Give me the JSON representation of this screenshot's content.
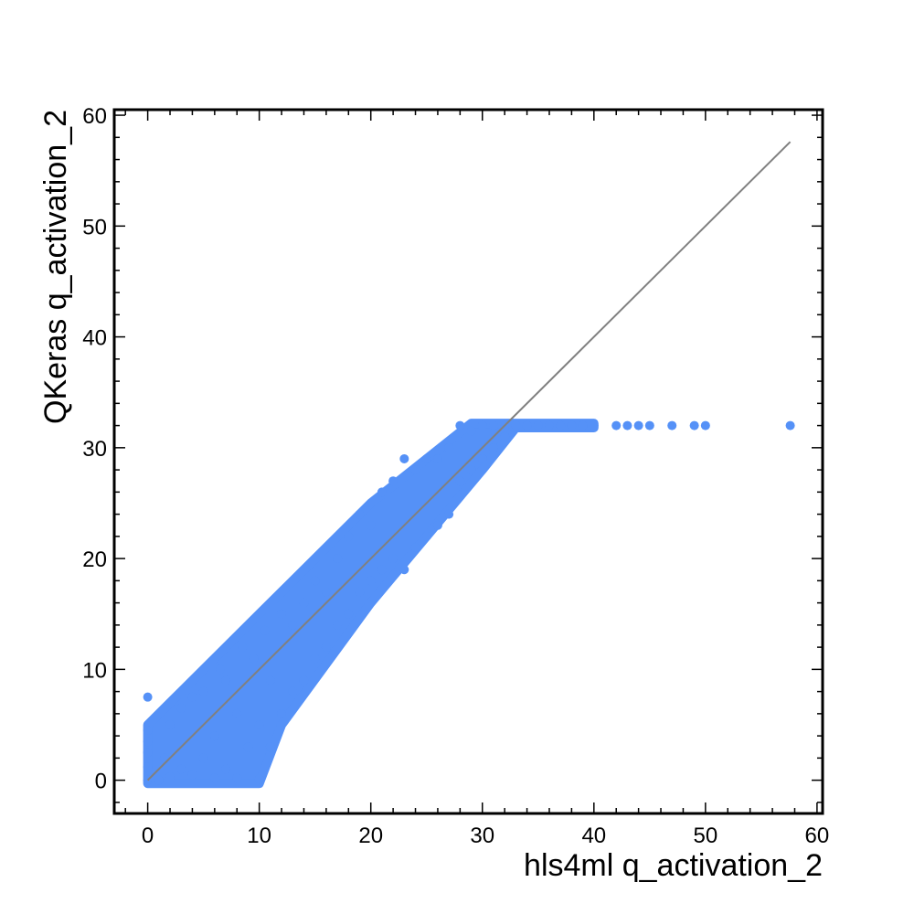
{
  "chart_data": {
    "type": "scatter",
    "title": "",
    "xlabel": "hls4ml q_activation_2",
    "ylabel": "QKeras q_activation_2",
    "xlim": [
      -3,
      60.5
    ],
    "ylim": [
      -3,
      60.5
    ],
    "x_ticks": [
      0,
      10,
      20,
      30,
      40,
      50,
      60
    ],
    "y_ticks": [
      0,
      10,
      20,
      30,
      40,
      50,
      60
    ],
    "grid": false,
    "legend": "none",
    "colors": {
      "points": "#5591f7",
      "reference_line": "#808080",
      "frame": "#000000"
    },
    "reference_line": {
      "x": [
        0,
        57.6
      ],
      "y": [
        0,
        57.6
      ]
    },
    "series": [
      {
        "points": [
          [
            0,
            0
          ],
          [
            0,
            1.2
          ],
          [
            0,
            2.5
          ],
          [
            0,
            3.5
          ],
          [
            0,
            4.5
          ],
          [
            0,
            7.5
          ],
          [
            0.5,
            0.2
          ],
          [
            1,
            0
          ],
          [
            1.5,
            2
          ],
          [
            2,
            0.3
          ],
          [
            2,
            5
          ],
          [
            3,
            1
          ],
          [
            3,
            6.5
          ],
          [
            4,
            0.5
          ],
          [
            4,
            7.5
          ],
          [
            5,
            2
          ],
          [
            5,
            8
          ],
          [
            6,
            0.2
          ],
          [
            6,
            4
          ],
          [
            6.5,
            10
          ],
          [
            7,
            1
          ],
          [
            7,
            9
          ],
          [
            8,
            0.2
          ],
          [
            8,
            6
          ],
          [
            8.5,
            12
          ],
          [
            9,
            3
          ],
          [
            9.5,
            11
          ],
          [
            10,
            0.1
          ],
          [
            10,
            5
          ],
          [
            10.5,
            13.5
          ],
          [
            11,
            3
          ],
          [
            11,
            9
          ],
          [
            12,
            6
          ],
          [
            12,
            15
          ],
          [
            13,
            8
          ],
          [
            13,
            14
          ],
          [
            14,
            9
          ],
          [
            14,
            16
          ],
          [
            15,
            11
          ],
          [
            15,
            18
          ],
          [
            16,
            12
          ],
          [
            16,
            17
          ],
          [
            17,
            14
          ],
          [
            17,
            20
          ],
          [
            18,
            15
          ],
          [
            18,
            22
          ],
          [
            19,
            17
          ],
          [
            19,
            24
          ],
          [
            20,
            18
          ],
          [
            20,
            23
          ],
          [
            21,
            19
          ],
          [
            21,
            26
          ],
          [
            22,
            20
          ],
          [
            22,
            27
          ],
          [
            23,
            19
          ],
          [
            23,
            29
          ],
          [
            24,
            21
          ],
          [
            24,
            28
          ],
          [
            25,
            22
          ],
          [
            25,
            29
          ],
          [
            26,
            23
          ],
          [
            26,
            29
          ],
          [
            27,
            24
          ],
          [
            27,
            30
          ],
          [
            28,
            27
          ],
          [
            28,
            32
          ],
          [
            29,
            28
          ],
          [
            29,
            31.5
          ],
          [
            30,
            29
          ],
          [
            30,
            32
          ],
          [
            31,
            30
          ],
          [
            31,
            32
          ],
          [
            32,
            31
          ],
          [
            32,
            32
          ],
          [
            33,
            32
          ],
          [
            34,
            32
          ],
          [
            35,
            32
          ],
          [
            36,
            32
          ],
          [
            37,
            32
          ],
          [
            38,
            32
          ],
          [
            39,
            32
          ],
          [
            40,
            32
          ],
          [
            42,
            32
          ],
          [
            43,
            32
          ],
          [
            44,
            32
          ],
          [
            45,
            32
          ],
          [
            47,
            32
          ],
          [
            49,
            32
          ],
          [
            50,
            32
          ],
          [
            57.6,
            32
          ]
        ]
      }
    ]
  }
}
